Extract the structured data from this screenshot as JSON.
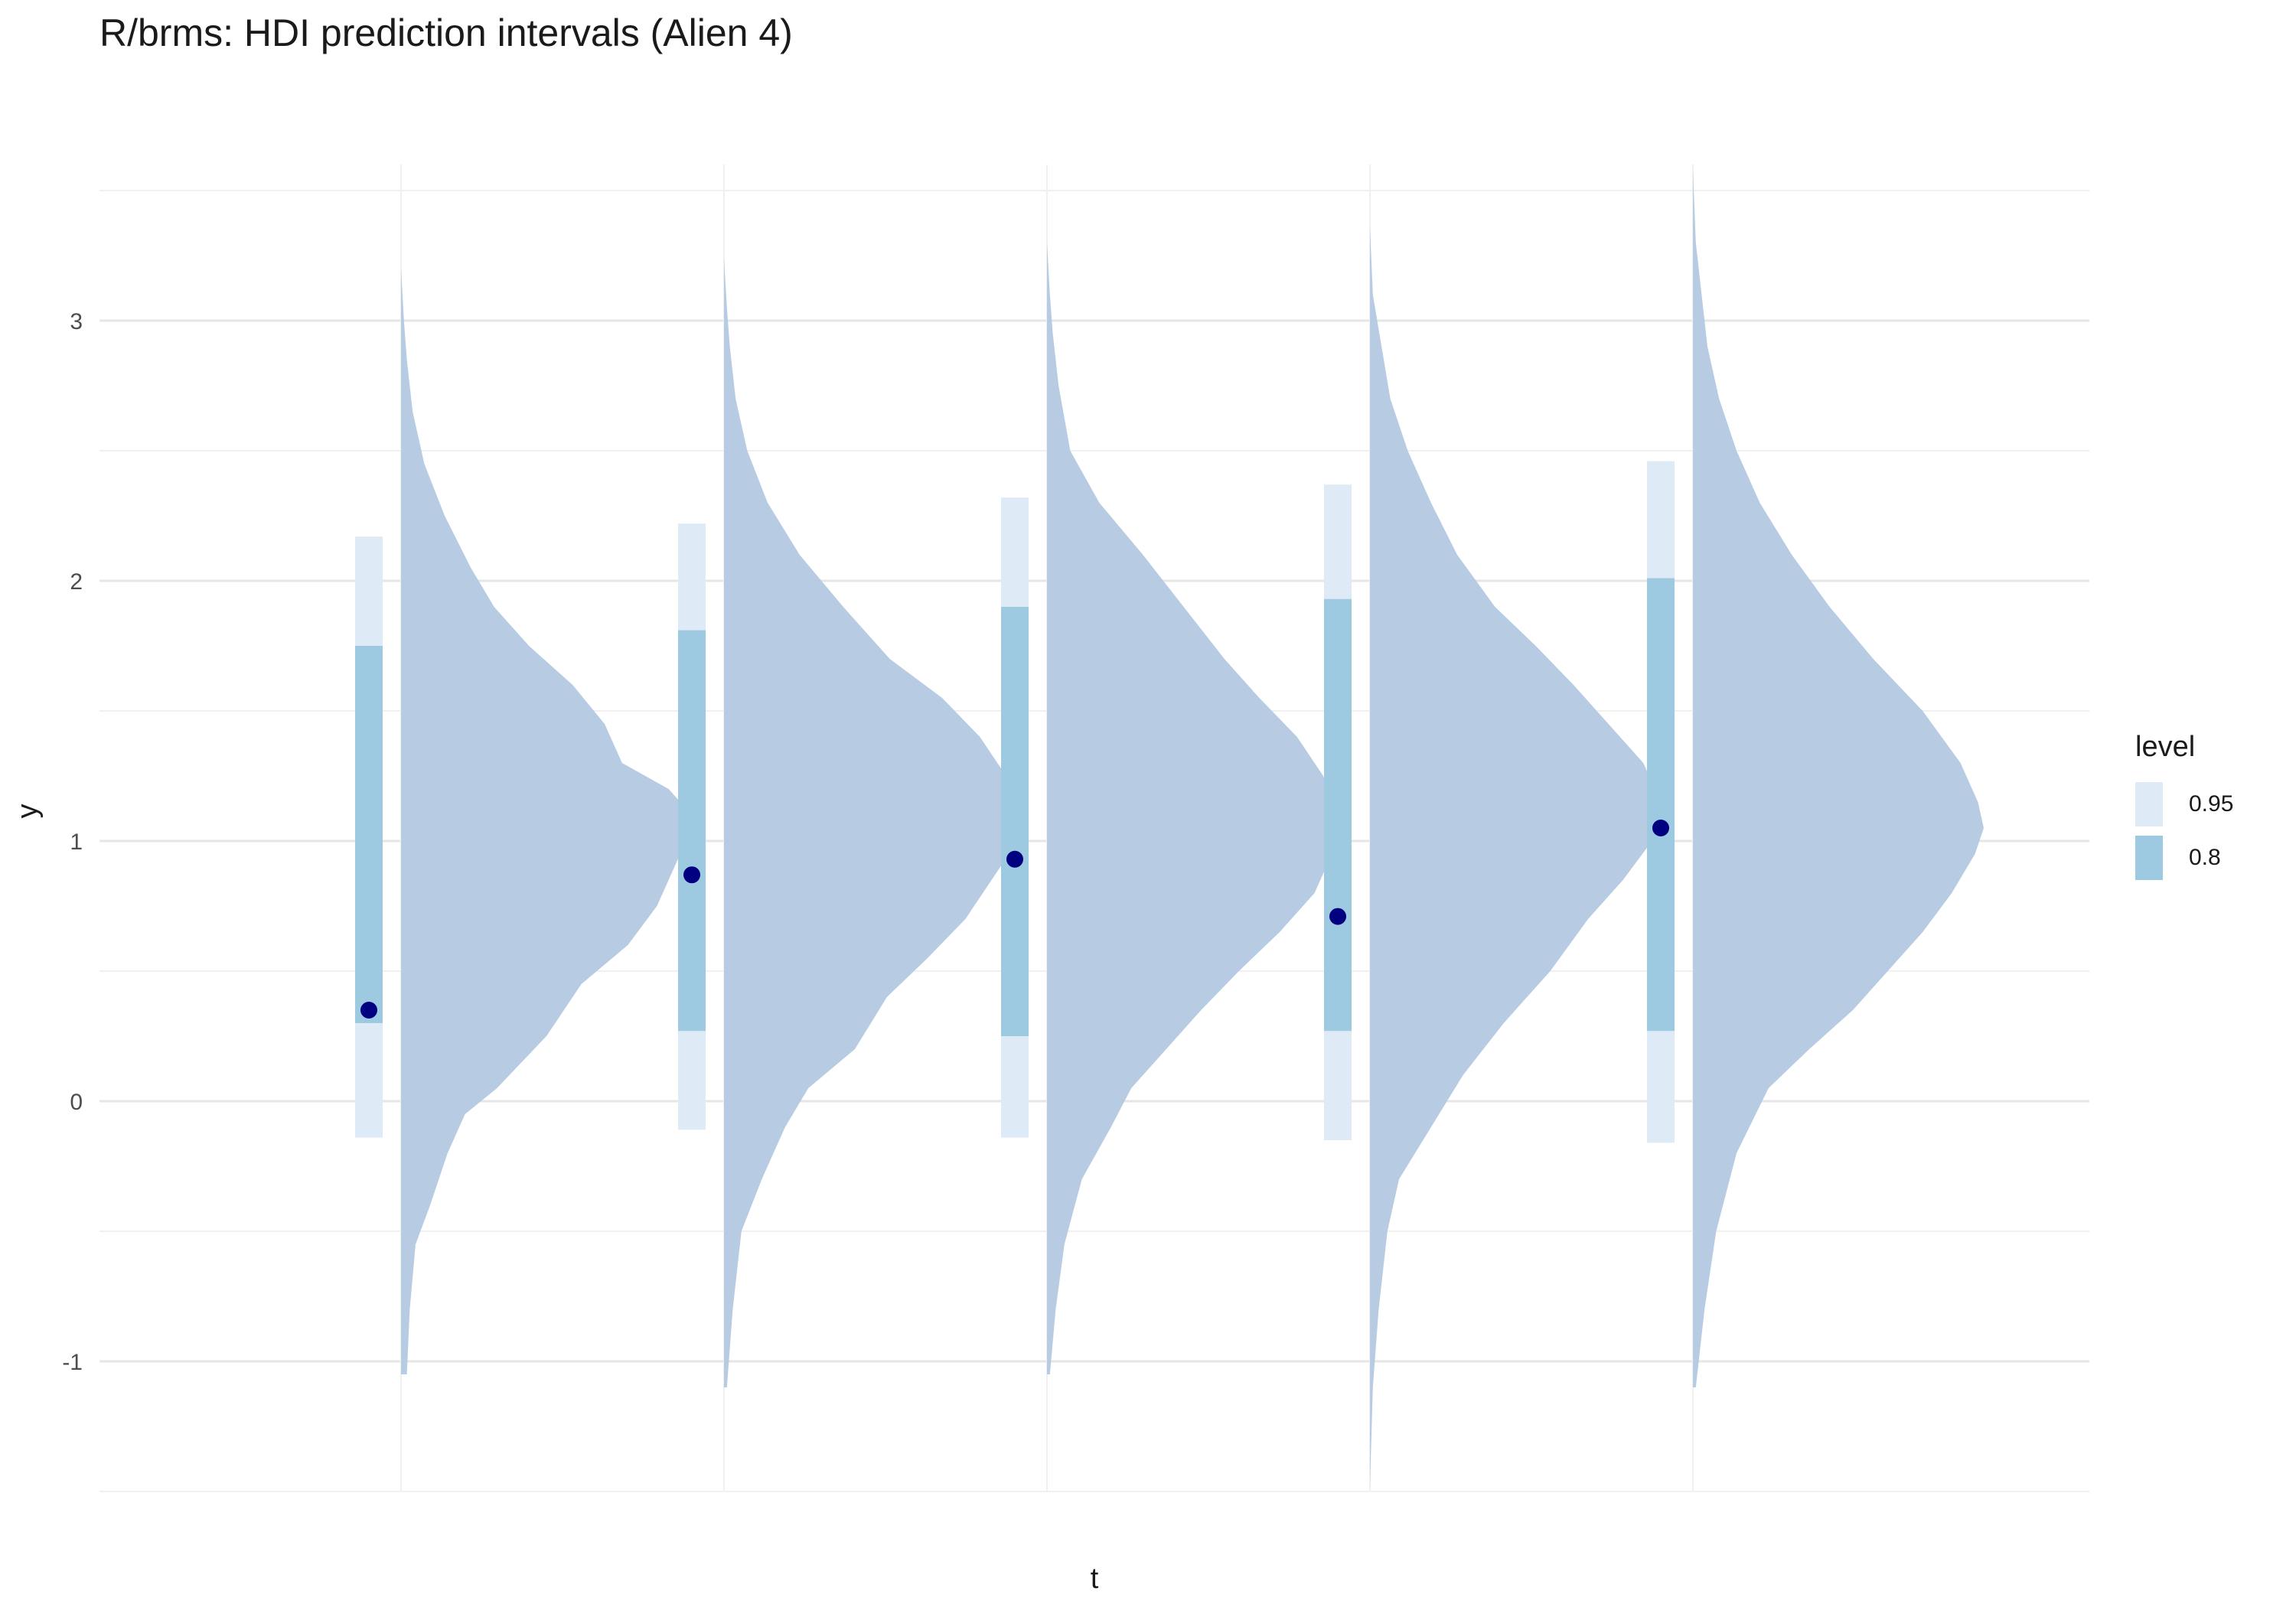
{
  "chart_data": {
    "type": "violin",
    "title": "R/brms: HDI prediction intervals (Alien 4)",
    "xlabel": "t",
    "ylabel": "y",
    "ylim": [
      -1.5,
      3.6
    ],
    "y_ticks": [
      -1,
      0,
      1,
      2,
      3
    ],
    "y_tick_labels": [
      "-1",
      "0",
      "1",
      "2",
      "3"
    ],
    "grid": true,
    "legend": {
      "title": "level",
      "position": "right",
      "entries": [
        {
          "label": "0.95",
          "color": "#deebf7"
        },
        {
          "label": "0.8",
          "color": "#9ecae1"
        }
      ]
    },
    "density_color": "#b3c9e0",
    "point_color": "#000080",
    "groups": [
      {
        "x": 1,
        "point": 0.35,
        "hdi_80": [
          0.3,
          1.75
        ],
        "hdi_95": [
          -0.14,
          2.17
        ],
        "density": {
          "min": -1.05,
          "max": 3.2,
          "mode": 1.1,
          "y": [
            -1.05,
            -0.8,
            -0.55,
            -0.4,
            -0.2,
            -0.05,
            0.05,
            0.25,
            0.45,
            0.6,
            0.75,
            0.9,
            1.0,
            1.1,
            1.2,
            1.3,
            1.45,
            1.6,
            1.75,
            1.9,
            2.05,
            2.25,
            2.45,
            2.65,
            2.85,
            3.0,
            3.2
          ],
          "width": [
            0.02,
            0.03,
            0.05,
            0.1,
            0.16,
            0.22,
            0.33,
            0.5,
            0.62,
            0.78,
            0.88,
            0.94,
            0.98,
            1.0,
            0.92,
            0.76,
            0.7,
            0.59,
            0.44,
            0.32,
            0.24,
            0.15,
            0.08,
            0.04,
            0.02,
            0.01,
            0.0
          ]
        }
      },
      {
        "x": 2,
        "point": 0.87,
        "hdi_80": [
          0.27,
          1.81
        ],
        "hdi_95": [
          -0.11,
          2.22
        ],
        "density": {
          "min": -1.1,
          "max": 3.24,
          "mode": 1.1,
          "y": [
            -1.1,
            -0.8,
            -0.5,
            -0.3,
            -0.1,
            0.05,
            0.2,
            0.4,
            0.55,
            0.7,
            0.85,
            0.95,
            1.05,
            1.15,
            1.25,
            1.4,
            1.55,
            1.7,
            1.9,
            2.1,
            2.3,
            2.5,
            2.7,
            2.9,
            3.05,
            3.24
          ],
          "width": [
            0.01,
            0.03,
            0.06,
            0.13,
            0.21,
            0.29,
            0.45,
            0.56,
            0.7,
            0.83,
            0.92,
            0.98,
            1.0,
            1.0,
            0.97,
            0.88,
            0.75,
            0.57,
            0.41,
            0.26,
            0.15,
            0.08,
            0.04,
            0.02,
            0.01,
            0.0
          ]
        }
      },
      {
        "x": 3,
        "point": 0.93,
        "hdi_80": [
          0.25,
          1.9
        ],
        "hdi_95": [
          -0.14,
          2.32
        ],
        "density": {
          "min": -1.05,
          "max": 3.3,
          "mode": 1.05,
          "y": [
            -1.05,
            -0.8,
            -0.55,
            -0.3,
            -0.1,
            0.05,
            0.2,
            0.35,
            0.5,
            0.65,
            0.8,
            0.95,
            1.05,
            1.15,
            1.25,
            1.4,
            1.55,
            1.7,
            1.9,
            2.1,
            2.3,
            2.5,
            2.75,
            2.95,
            3.1,
            3.3
          ],
          "width": [
            0.01,
            0.03,
            0.06,
            0.12,
            0.22,
            0.29,
            0.41,
            0.53,
            0.66,
            0.8,
            0.92,
            0.98,
            1.0,
            0.98,
            0.95,
            0.86,
            0.73,
            0.61,
            0.47,
            0.33,
            0.18,
            0.08,
            0.04,
            0.02,
            0.01,
            0.0
          ]
        }
      },
      {
        "x": 4,
        "point": 0.71,
        "hdi_80": [
          0.27,
          1.93
        ],
        "hdi_95": [
          -0.15,
          2.37
        ],
        "density": {
          "min": -1.48,
          "max": 3.36,
          "mode": 1.15,
          "y": [
            -1.48,
            -1.1,
            -0.8,
            -0.5,
            -0.3,
            -0.1,
            0.1,
            0.3,
            0.5,
            0.7,
            0.85,
            1.0,
            1.15,
            1.3,
            1.45,
            1.6,
            1.75,
            1.9,
            2.1,
            2.3,
            2.5,
            2.7,
            2.9,
            3.1,
            3.36
          ],
          "width": [
            0.0,
            0.01,
            0.03,
            0.06,
            0.1,
            0.21,
            0.32,
            0.46,
            0.62,
            0.75,
            0.87,
            0.97,
            1.0,
            0.94,
            0.82,
            0.7,
            0.57,
            0.43,
            0.3,
            0.21,
            0.13,
            0.07,
            0.04,
            0.01,
            0.0
          ]
        }
      },
      {
        "x": 5,
        "point": 1.05,
        "hdi_80": [
          0.27,
          2.01
        ],
        "hdi_95": [
          -0.16,
          2.46
        ],
        "density": {
          "min": -1.1,
          "max": 3.58,
          "mode": 1.1,
          "y": [
            -1.1,
            -0.8,
            -0.5,
            -0.2,
            0.05,
            0.2,
            0.35,
            0.5,
            0.65,
            0.8,
            0.95,
            1.05,
            1.15,
            1.3,
            1.5,
            1.7,
            1.9,
            2.1,
            2.3,
            2.5,
            2.7,
            2.9,
            3.1,
            3.3,
            3.58
          ],
          "width": [
            0.01,
            0.04,
            0.08,
            0.15,
            0.26,
            0.4,
            0.55,
            0.67,
            0.79,
            0.89,
            0.97,
            1.0,
            0.98,
            0.92,
            0.79,
            0.62,
            0.47,
            0.34,
            0.23,
            0.15,
            0.09,
            0.05,
            0.03,
            0.01,
            0.0
          ]
        }
      }
    ]
  }
}
